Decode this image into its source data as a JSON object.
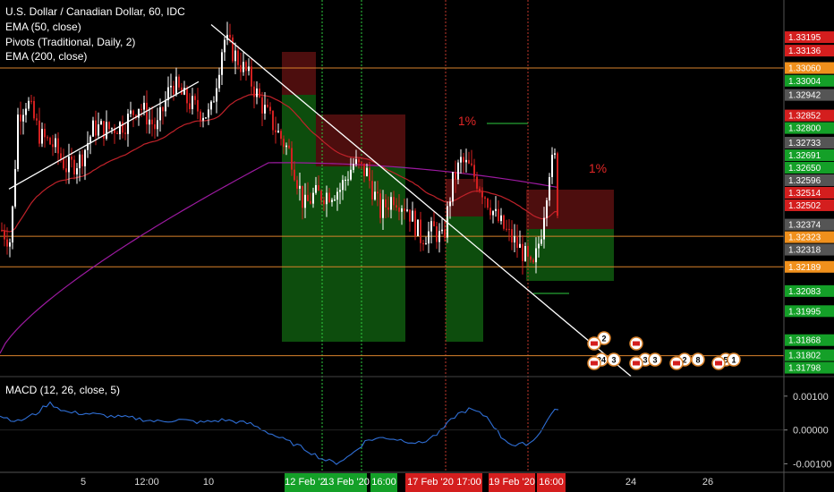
{
  "legend": {
    "title": "U.S. Dollar / Canadian Dollar, 60, IDC",
    "ema50": "EMA (50, close)",
    "pivots": "Pivots (Traditional, Daily, 2)",
    "ema200": "EMA (200, close)",
    "macd": "MACD (12, 26, close, 5)"
  },
  "colors": {
    "background": "#000000",
    "up_candle": "#ffffff",
    "down_candle": "#d32020",
    "ema50": "#c0222a",
    "ema200": "#9c1aa0",
    "pivot_line": "#d9822b",
    "trendline": "#ffffff",
    "macd_line": "#2f6fd6",
    "green_zone": "#0f5a0f",
    "red_zone": "#5a1010",
    "vline_green": "#2ecc40",
    "vline_red": "#c0392b"
  },
  "chart_data": [
    {
      "type": "candlestick",
      "title": "U.S. Dollar / Canadian Dollar, 60, IDC",
      "ylim": [
        1.3172,
        1.3335
      ],
      "price_labels": [
        {
          "value": "1.33195",
          "price": 1.33195,
          "bg": "#d41e1e"
        },
        {
          "value": "1.33136",
          "price": 1.33136,
          "bg": "#d41e1e"
        },
        {
          "value": "1.33060",
          "price": 1.3306,
          "bg": "#f0901c"
        },
        {
          "value": "1.33004",
          "price": 1.33004,
          "bg": "#14a028"
        },
        {
          "value": "1.32942",
          "price": 1.32942,
          "bg": "#555555"
        },
        {
          "value": "1.32852",
          "price": 1.32852,
          "bg": "#d41e1e"
        },
        {
          "value": "1.32800",
          "price": 1.328,
          "bg": "#14a028"
        },
        {
          "value": "1.32733",
          "price": 1.32733,
          "bg": "#555555"
        },
        {
          "value": "1.32691",
          "price": 1.32691,
          "bg": "#14a028"
        },
        {
          "value": "1.32650",
          "price": 1.3265,
          "bg": "#14a028"
        },
        {
          "value": "1.32596",
          "price": 1.32596,
          "bg": "#555555"
        },
        {
          "value": "1.32514",
          "price": 1.32514,
          "bg": "#d41e1e"
        },
        {
          "value": "1.32502",
          "price": 1.32502,
          "bg": "#d41e1e"
        },
        {
          "value": "1.32374",
          "price": 1.32374,
          "bg": "#555555"
        },
        {
          "value": "1.32323",
          "price": 1.32323,
          "bg": "#f0901c"
        },
        {
          "value": "1.32318",
          "price": 1.32318,
          "bg": "#555555"
        },
        {
          "value": "1.32189",
          "price": 1.32189,
          "bg": "#f0901c"
        },
        {
          "value": "1.32083",
          "price": 1.32083,
          "bg": "#14a028"
        },
        {
          "value": "1.31995",
          "price": 1.31995,
          "bg": "#14a028"
        },
        {
          "value": "1.31868",
          "price": 1.31868,
          "bg": "#14a028"
        },
        {
          "value": "1.31802",
          "price": 1.31802,
          "bg": "#14a028"
        },
        {
          "value": "1.31798",
          "price": 1.31798,
          "bg": "#14a028"
        }
      ],
      "pivot_levels": [
        1.3306,
        1.32323,
        1.32189,
        1.318
      ],
      "annotations": [
        "1%",
        "1%"
      ],
      "x_ticks": [
        "5",
        "12:00",
        "10",
        "24",
        "26"
      ],
      "x_highlighted": [
        {
          "label": "12 Feb '20",
          "bg": "#14a028"
        },
        {
          "label": "13 Feb '20",
          "bg": "#14a028"
        },
        {
          "label": "16:00",
          "bg": "#14a028"
        },
        {
          "label": "17 Feb '20",
          "bg": "#d41e1e"
        },
        {
          "label": "17:00",
          "bg": "#d41e1e"
        },
        {
          "label": "19 Feb '20",
          "bg": "#d41e1e"
        },
        {
          "label": "16:00",
          "bg": "#d41e1e"
        }
      ],
      "event_badges": [
        "2",
        "24",
        "3",
        "3",
        "3",
        "2",
        "8",
        "5",
        "1"
      ]
    },
    {
      "type": "line",
      "title": "MACD (12, 26, close, 5)",
      "ylim": [
        -0.00125,
        0.00155
      ],
      "y_ticks": [
        "0.00100",
        "0.00000",
        "-0.00100"
      ],
      "y_tick_values": [
        0.001,
        0.0,
        -0.001
      ]
    }
  ]
}
